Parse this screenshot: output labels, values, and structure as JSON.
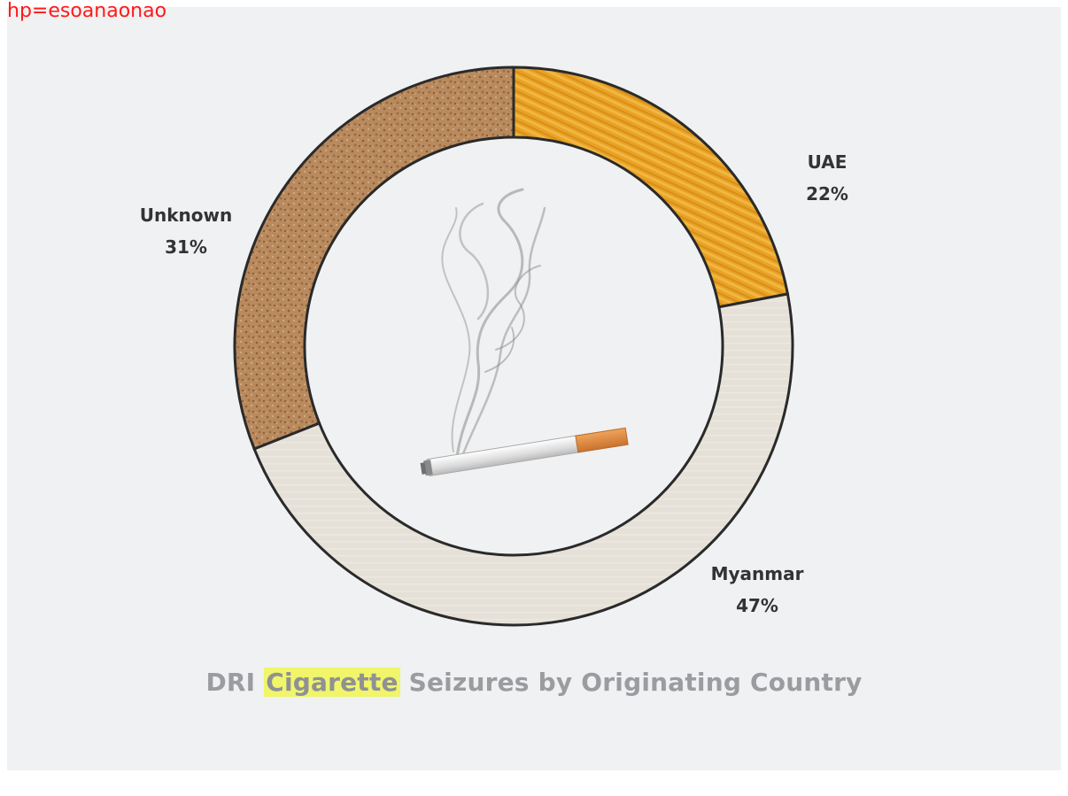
{
  "top_caption": "hp=esoanaonao",
  "chart_data": {
    "type": "pie",
    "title_parts": [
      "DRI",
      "Cigarette",
      "Seizures by Originating Country"
    ],
    "slices": [
      {
        "label": "UAE",
        "value": 22,
        "value_label": "22%",
        "color": "#e8a024"
      },
      {
        "label": "Myanmar",
        "value": 47,
        "value_label": "47%",
        "color": "#e6e1d8"
      },
      {
        "label": "Unknown",
        "value": 31,
        "value_label": "31%",
        "color": "#b98a5e"
      }
    ],
    "donut": true,
    "start": "top",
    "direction": "clockwise",
    "legend": "none"
  },
  "colors": {
    "background": "#eff1f2",
    "title_text": "#9a9ca0",
    "title_highlight": "#f0f56a",
    "outline": "#2a2a2a",
    "caption": "#ff1a1a"
  },
  "center_icon": "smoking-cigarette-icon"
}
